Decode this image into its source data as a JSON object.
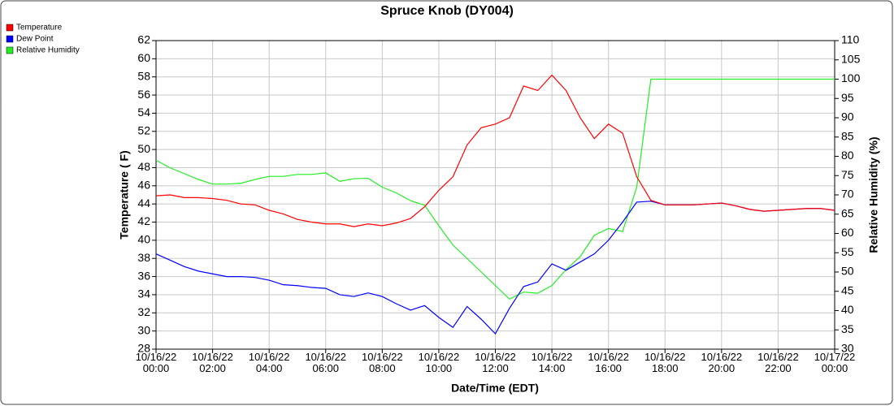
{
  "chart_data": {
    "type": "line",
    "title": "Spruce Knob (DY004)",
    "x_label": "Date/Time (EDT)",
    "y_label": "Temperature ( F)",
    "y2_label": "Relative Humidity (%)",
    "x": [
      0,
      0.5,
      1,
      1.5,
      2,
      2.5,
      3,
      3.5,
      4,
      4.5,
      5,
      5.5,
      6,
      6.5,
      7,
      7.5,
      8,
      8.5,
      9,
      9.5,
      10,
      10.5,
      11,
      11.5,
      12,
      12.5,
      13,
      13.5,
      14,
      14.5,
      15,
      15.5,
      16,
      16.5,
      17,
      17.5,
      18,
      18.5,
      19,
      19.5,
      20,
      20.5,
      21,
      21.5,
      22,
      22.5,
      23,
      23.5,
      24
    ],
    "xlim": [
      0,
      24
    ],
    "xticks": [
      {
        "value": 0,
        "label": "10/16/22\n00:00"
      },
      {
        "value": 2,
        "label": "10/16/22\n02:00"
      },
      {
        "value": 4,
        "label": "10/16/22\n04:00"
      },
      {
        "value": 6,
        "label": "10/16/22\n06:00"
      },
      {
        "value": 8,
        "label": "10/16/22\n08:00"
      },
      {
        "value": 10,
        "label": "10/16/22\n10:00"
      },
      {
        "value": 12,
        "label": "10/16/22\n12:00"
      },
      {
        "value": 14,
        "label": "10/16/22\n14:00"
      },
      {
        "value": 16,
        "label": "10/16/22\n16:00"
      },
      {
        "value": 18,
        "label": "10/16/22\n18:00"
      },
      {
        "value": 20,
        "label": "10/16/22\n20:00"
      },
      {
        "value": 22,
        "label": "10/16/22\n22:00"
      },
      {
        "value": 24,
        "label": "10/17/22\n00:00"
      }
    ],
    "ylim": [
      28,
      62
    ],
    "yticks": [
      28,
      30,
      32,
      34,
      36,
      38,
      40,
      42,
      44,
      46,
      48,
      50,
      52,
      54,
      56,
      58,
      60,
      62
    ],
    "y2lim": [
      30,
      110
    ],
    "y2ticks": [
      30,
      35,
      40,
      45,
      50,
      55,
      60,
      65,
      70,
      75,
      80,
      85,
      90,
      95,
      100,
      105,
      110
    ],
    "grid": true,
    "legend": "top-left",
    "series": [
      {
        "name": "Temperature",
        "color": "#ff0000",
        "values": [
          44.9,
          45.0,
          44.7,
          44.7,
          44.6,
          44.4,
          44.0,
          43.9,
          43.3,
          42.9,
          42.3,
          42.0,
          41.8,
          41.8,
          41.5,
          41.8,
          41.6,
          41.9,
          42.4,
          43.7,
          45.5,
          47.0,
          50.5,
          52.4,
          52.8,
          53.5,
          57.0,
          56.5,
          58.2,
          56.5,
          53.5,
          51.2,
          52.8,
          51.8,
          47.0,
          44.4,
          43.9,
          43.9,
          43.9,
          44.0,
          44.1,
          43.8,
          43.4,
          43.2,
          43.3,
          43.4,
          43.5,
          43.5,
          43.3
        ]
      },
      {
        "name": "Dew Point",
        "color": "#0000ff",
        "values": [
          38.5,
          37.8,
          37.1,
          36.6,
          36.3,
          36.0,
          36.0,
          35.9,
          35.6,
          35.1,
          35.0,
          34.8,
          34.7,
          34.0,
          33.8,
          34.2,
          33.8,
          33.0,
          32.3,
          32.8,
          31.5,
          30.4,
          32.7,
          31.3,
          29.7,
          32.5,
          34.9,
          35.4,
          37.4,
          36.7,
          37.6,
          38.5,
          40.0,
          42.0,
          44.2,
          44.3,
          43.9,
          43.9,
          43.9,
          44.0,
          44.1,
          43.8,
          43.4,
          43.2,
          43.3,
          43.4,
          43.5,
          43.5,
          43.3
        ]
      },
      {
        "name": "Relative Humidity",
        "color": "#22ee22",
        "axis": "y2",
        "values": [
          79,
          77,
          75.5,
          74,
          72.8,
          72.8,
          73,
          74,
          74.8,
          74.8,
          75.3,
          75.3,
          75.7,
          73.5,
          74.2,
          74.3,
          72,
          70.5,
          68.5,
          67.3,
          62,
          57,
          53.5,
          50,
          46.5,
          43,
          44.8,
          44.5,
          46.5,
          50.6,
          54,
          59.5,
          61.3,
          60.5,
          72,
          100,
          100,
          100,
          100,
          100,
          100,
          100,
          100,
          100,
          100,
          100,
          100,
          100,
          100
        ]
      }
    ]
  }
}
